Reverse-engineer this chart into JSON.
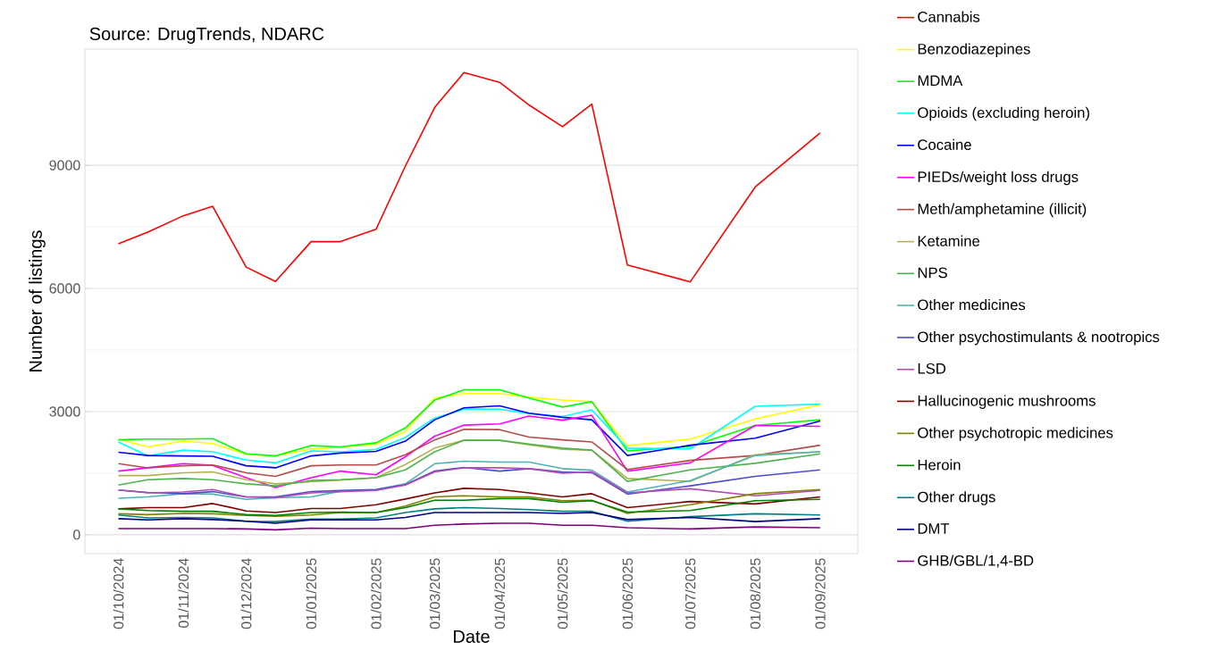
{
  "chart_data": {
    "type": "line",
    "title": "Source: DrugTrends, NDARC",
    "xlabel": "Date",
    "ylabel": "Number of listings",
    "x": [
      "2024-10-01",
      "2024-10-15",
      "2024-11-01",
      "2024-11-15",
      "2024-12-01",
      "2024-12-15",
      "2025-01-01",
      "2025-01-15",
      "2025-02-01",
      "2025-02-15",
      "2025-03-01",
      "2025-03-15",
      "2025-04-01",
      "2025-04-15",
      "2025-05-01",
      "2025-05-15",
      "2025-06-01",
      "2025-07-01",
      "2025-08-01",
      "2025-09-01"
    ],
    "xlim": [
      "2024-09-15",
      "2025-09-19"
    ],
    "xticks": [
      {
        "value": "2024-10-01",
        "label": "01/10/2024"
      },
      {
        "value": "2024-11-01",
        "label": "01/11/2024"
      },
      {
        "value": "2024-12-01",
        "label": "01/12/2024"
      },
      {
        "value": "2025-01-01",
        "label": "01/01/2025"
      },
      {
        "value": "2025-02-01",
        "label": "01/02/2025"
      },
      {
        "value": "2025-03-01",
        "label": "01/03/2025"
      },
      {
        "value": "2025-04-01",
        "label": "01/04/2025"
      },
      {
        "value": "2025-05-01",
        "label": "01/05/2025"
      },
      {
        "value": "2025-06-01",
        "label": "01/06/2025"
      },
      {
        "value": "2025-07-01",
        "label": "01/07/2025"
      },
      {
        "value": "2025-08-01",
        "label": "01/08/2025"
      },
      {
        "value": "2025-09-01",
        "label": "01/09/2025"
      }
    ],
    "ylim": [
      -460,
      11830
    ],
    "yticks": [
      0,
      3000,
      6000,
      9000
    ],
    "grid": "y",
    "legend": "right",
    "series": [
      {
        "name": "Cannabis",
        "color": "#ff0000",
        "values": [
          7090,
          7370,
          7770,
          8000,
          6520,
          6170,
          7140,
          7140,
          7440,
          8980,
          10410,
          11260,
          11020,
          10470,
          9940,
          10490,
          6570,
          6160,
          8470,
          9790
        ]
      },
      {
        "name": "Benzodiazepines",
        "color": "#ffff00",
        "values": [
          2330,
          2140,
          2280,
          2220,
          1960,
          1920,
          2090,
          2130,
          2210,
          2510,
          3330,
          3440,
          3440,
          3350,
          3280,
          3240,
          2170,
          2330,
          2820,
          3170
        ]
      },
      {
        "name": "MDMA",
        "color": "#00ff00",
        "values": [
          2310,
          2330,
          2330,
          2340,
          1970,
          1920,
          2170,
          2140,
          2240,
          2600,
          3280,
          3530,
          3530,
          3330,
          3110,
          3240,
          2040,
          2150,
          2660,
          2800
        ]
      },
      {
        "name": "Opioids (excluding heroin)",
        "color": "#00ffff",
        "values": [
          2260,
          1920,
          2060,
          2020,
          1820,
          1750,
          2040,
          2020,
          2080,
          2370,
          2840,
          3060,
          3060,
          2950,
          2880,
          3040,
          2110,
          2090,
          3130,
          3180
        ]
      },
      {
        "name": "Cocaine",
        "color": "#0000ff",
        "values": [
          2010,
          1930,
          1920,
          1910,
          1680,
          1630,
          1920,
          1990,
          2030,
          2280,
          2800,
          3090,
          3140,
          2960,
          2860,
          2800,
          1930,
          2180,
          2350,
          2770
        ]
      },
      {
        "name": "PIEDs/weight loss drugs",
        "color": "#ff00ff",
        "values": [
          1550,
          1630,
          1730,
          1690,
          1390,
          1150,
          1390,
          1550,
          1460,
          1900,
          2400,
          2670,
          2700,
          2890,
          2790,
          2910,
          1550,
          1750,
          2660,
          2640
        ]
      },
      {
        "name": "Meth/amphetamine (illicit)",
        "color": "#b34d4d",
        "values": [
          1730,
          1630,
          1680,
          1700,
          1510,
          1420,
          1680,
          1700,
          1700,
          1950,
          2310,
          2570,
          2560,
          2380,
          2310,
          2260,
          1590,
          1810,
          1930,
          2180
        ]
      },
      {
        "name": "Ketamine",
        "color": "#b3b34d",
        "values": [
          1440,
          1440,
          1510,
          1530,
          1340,
          1240,
          1290,
          1330,
          1390,
          1710,
          2110,
          2300,
          2300,
          2190,
          2080,
          2060,
          1370,
          1300,
          1950,
          2020
        ]
      },
      {
        "name": "NPS",
        "color": "#4db34d",
        "values": [
          1210,
          1340,
          1370,
          1340,
          1240,
          1190,
          1320,
          1340,
          1390,
          1580,
          2020,
          2300,
          2300,
          2210,
          2110,
          2060,
          1300,
          1580,
          1740,
          1970
        ]
      },
      {
        "name": "Other medicines",
        "color": "#4db3b3",
        "values": [
          890,
          920,
          1000,
          990,
          860,
          900,
          920,
          1060,
          1100,
          1240,
          1730,
          1790,
          1770,
          1770,
          1610,
          1570,
          1040,
          1320,
          1930,
          2020
        ]
      },
      {
        "name": "Other psychostimulants & nootropics",
        "color": "#4d4dcc",
        "values": [
          1090,
          1030,
          1000,
          1050,
          920,
          920,
          1050,
          1080,
          1100,
          1220,
          1550,
          1640,
          1550,
          1610,
          1530,
          1510,
          990,
          1190,
          1420,
          1580
        ]
      },
      {
        "name": "LSD",
        "color": "#b34db3",
        "values": [
          1090,
          1020,
          1040,
          1100,
          920,
          900,
          1020,
          1050,
          1080,
          1210,
          1530,
          1630,
          1630,
          1610,
          1500,
          1530,
          1020,
          1120,
          950,
          1080
        ]
      },
      {
        "name": "Hallucinogenic mushrooms",
        "color": "#800000",
        "values": [
          630,
          660,
          660,
          760,
          580,
          540,
          640,
          640,
          730,
          870,
          1020,
          1130,
          1100,
          1020,
          920,
          1000,
          660,
          810,
          750,
          920
        ]
      },
      {
        "name": "Other psychotropic medicines",
        "color": "#808000",
        "values": [
          510,
          490,
          520,
          510,
          470,
          450,
          480,
          540,
          540,
          700,
          920,
          950,
          920,
          920,
          830,
          840,
          520,
          730,
          1000,
          1100
        ]
      },
      {
        "name": "Heroin",
        "color": "#008000",
        "values": [
          630,
          590,
          570,
          570,
          490,
          470,
          540,
          550,
          540,
          660,
          840,
          840,
          880,
          880,
          790,
          830,
          550,
          590,
          830,
          860
        ]
      },
      {
        "name": "Other drugs",
        "color": "#008080",
        "values": [
          480,
          410,
          420,
          410,
          330,
          320,
          380,
          380,
          410,
          540,
          630,
          660,
          640,
          610,
          570,
          570,
          330,
          440,
          510,
          480
        ]
      },
      {
        "name": "DMT",
        "color": "#000080",
        "values": [
          390,
          360,
          390,
          370,
          330,
          280,
          360,
          360,
          360,
          420,
          540,
          540,
          540,
          540,
          520,
          540,
          370,
          420,
          320,
          390
        ]
      },
      {
        "name": "GHB/GBL/1,4-BD",
        "color": "#800080",
        "values": [
          150,
          150,
          150,
          150,
          140,
          120,
          160,
          150,
          150,
          150,
          230,
          260,
          280,
          280,
          230,
          230,
          170,
          140,
          190,
          170
        ]
      }
    ]
  }
}
